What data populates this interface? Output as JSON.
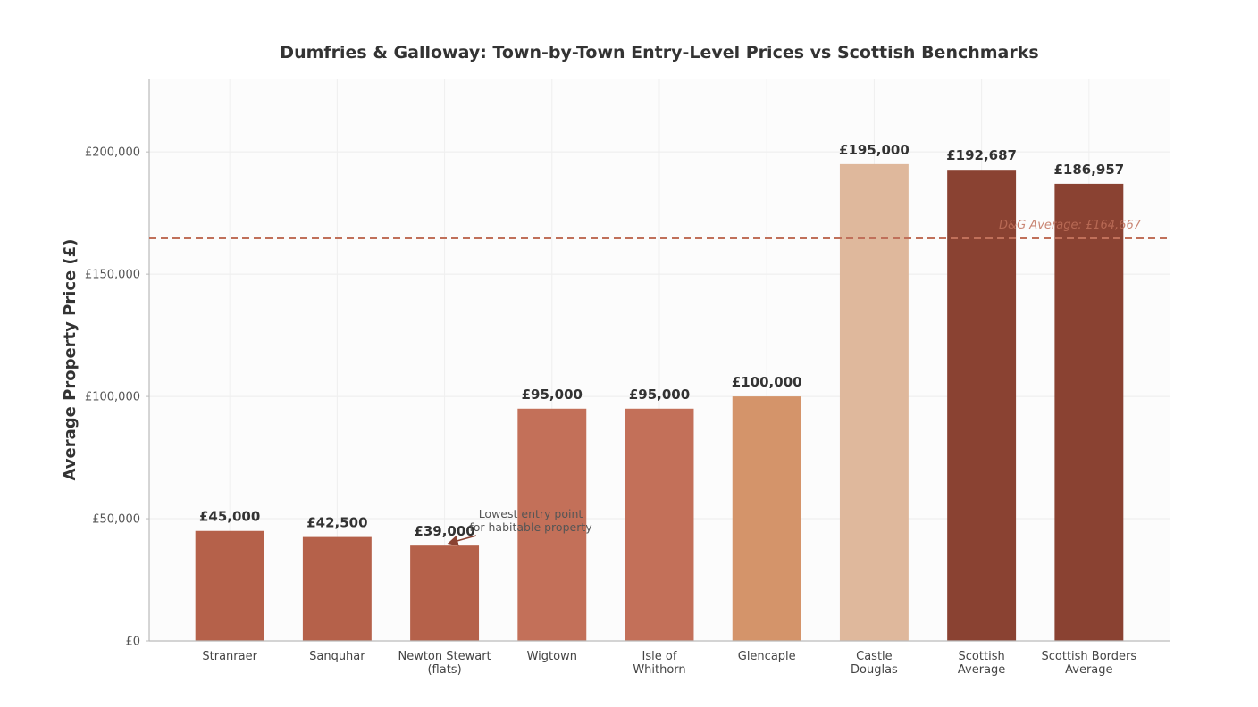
{
  "chart_data": {
    "type": "bar",
    "title": "Dumfries & Galloway: Town-by-Town Entry-Level Prices vs Scottish Benchmarks",
    "xlabel": "",
    "ylabel": "Average Property Price (£)",
    "ylim": [
      0,
      230000
    ],
    "yticks": [
      0,
      50000,
      100000,
      150000,
      200000
    ],
    "ytick_labels": [
      "£0",
      "£50,000",
      "£100,000",
      "£150,000",
      "£200,000"
    ],
    "grid": true,
    "categories": [
      [
        "Stranraer"
      ],
      [
        "Sanquhar"
      ],
      [
        "Newton Stewart",
        "(flats)"
      ],
      [
        "Wigtown"
      ],
      [
        "Isle of",
        "Whithorn"
      ],
      [
        "Glencaple"
      ],
      [
        "Castle",
        "Douglas"
      ],
      [
        "Scottish",
        "Average"
      ],
      [
        "Scottish Borders",
        "Average"
      ]
    ],
    "values": [
      45000,
      42500,
      39000,
      95000,
      95000,
      100000,
      195000,
      192687,
      186957
    ],
    "value_labels": [
      "£45,000",
      "£42,500",
      "£39,000",
      "£95,000",
      "£95,000",
      "£100,000",
      "£195,000",
      "£192,687",
      "£186,957"
    ],
    "colors": [
      "#b5614a",
      "#b5614a",
      "#b5614a",
      "#c37059",
      "#c37059",
      "#d4946a",
      "#dfb89c",
      "#8a4232",
      "#8a4232"
    ],
    "reference_line": {
      "value": 164667,
      "label": "D&G Average: £164,667",
      "color": "#c0705a"
    },
    "annotation": {
      "text": [
        "Lowest entry point",
        "for habitable property"
      ],
      "target_index": 2
    }
  }
}
